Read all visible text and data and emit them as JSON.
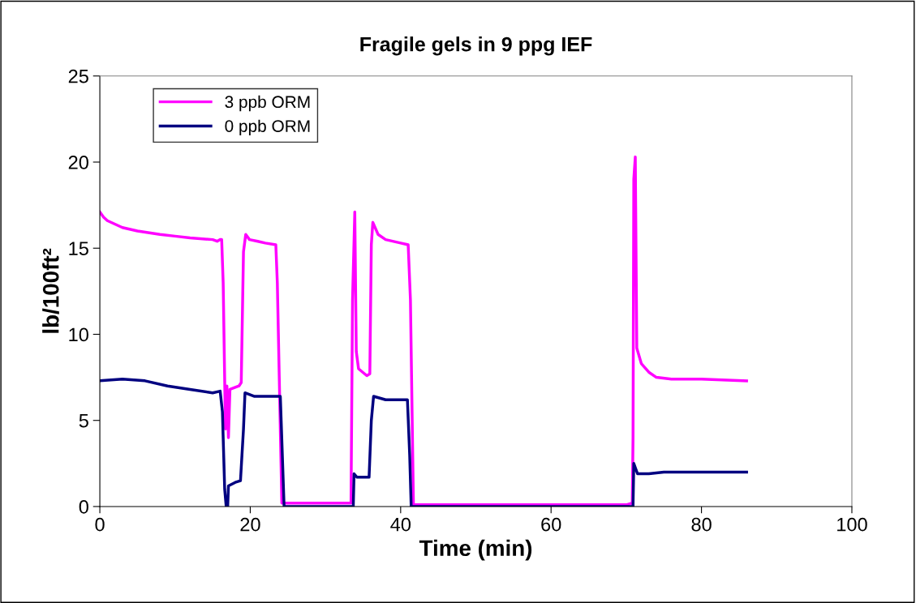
{
  "chart_data": {
    "type": "line",
    "title": "Fragile gels in 9 ppg IEF",
    "xlabel": "Time (min)",
    "ylabel": "lb/100ft²",
    "xlim": [
      0,
      100
    ],
    "xticks": [
      0,
      20,
      40,
      60,
      80,
      100
    ],
    "ylim": [
      0,
      25
    ],
    "yticks": [
      0,
      5,
      10,
      15,
      20,
      25
    ],
    "grid": false,
    "legend": "top left",
    "marker": "none",
    "line_style": "solid",
    "series": [
      {
        "name": "3 ppb ORM",
        "color": "#ff00ff",
        "x": [
          0,
          0.5,
          1,
          2,
          3,
          5,
          8,
          10,
          12,
          15,
          15.6,
          16.0,
          16.2,
          16.4,
          16.7,
          16.9,
          17.1,
          17.3,
          18.5,
          18.8,
          19.1,
          19.4,
          19.9,
          21,
          22,
          23.4,
          23.6,
          24.2,
          24.5,
          33.4,
          33.6,
          33.9,
          34.1,
          34.4,
          35.5,
          35.9,
          36.1,
          36.3,
          37,
          38,
          40,
          41,
          41.3,
          41.7,
          70,
          70.8,
          70.9,
          71,
          71.2,
          71.4,
          72,
          73,
          74,
          76,
          80,
          86
        ],
        "values": [
          17.1,
          16.8,
          16.6,
          16.4,
          16.2,
          16.0,
          15.8,
          15.7,
          15.6,
          15.5,
          15.4,
          15.5,
          15.5,
          13,
          4.5,
          7.0,
          4.0,
          6.8,
          7.0,
          7.2,
          14.8,
          15.8,
          15.5,
          15.4,
          15.3,
          15.2,
          13,
          0.2,
          0.2,
          0.2,
          12,
          17.1,
          9.0,
          8.0,
          7.6,
          7.7,
          15.2,
          16.5,
          15.8,
          15.5,
          15.3,
          15.2,
          12,
          0.1,
          0.1,
          0.2,
          4,
          19,
          20.3,
          9.2,
          8.3,
          7.8,
          7.5,
          7.4,
          7.4,
          7.3
        ]
      },
      {
        "name": "0 ppb ORM",
        "color": "#000080",
        "x": [
          0,
          3,
          6,
          9,
          12,
          15,
          16,
          16.3,
          16.6,
          16.8,
          17.0,
          17.1,
          18,
          18.7,
          19.1,
          19.3,
          20.5,
          24,
          24.5,
          33.7,
          33.8,
          34.2,
          35.8,
          36.1,
          36.4,
          38,
          40.9,
          41.2,
          41.4,
          70.9,
          71,
          71.5,
          73,
          75,
          86
        ],
        "values": [
          7.3,
          7.4,
          7.3,
          7.0,
          6.8,
          6.6,
          6.7,
          5.5,
          1.0,
          0,
          0,
          1.2,
          1.4,
          1.5,
          4.5,
          6.6,
          6.4,
          6.4,
          0,
          0,
          1.9,
          1.7,
          1.7,
          5,
          6.4,
          6.2,
          6.2,
          3,
          0,
          0,
          2.5,
          1.9,
          1.9,
          2.0,
          2.0
        ]
      }
    ]
  }
}
